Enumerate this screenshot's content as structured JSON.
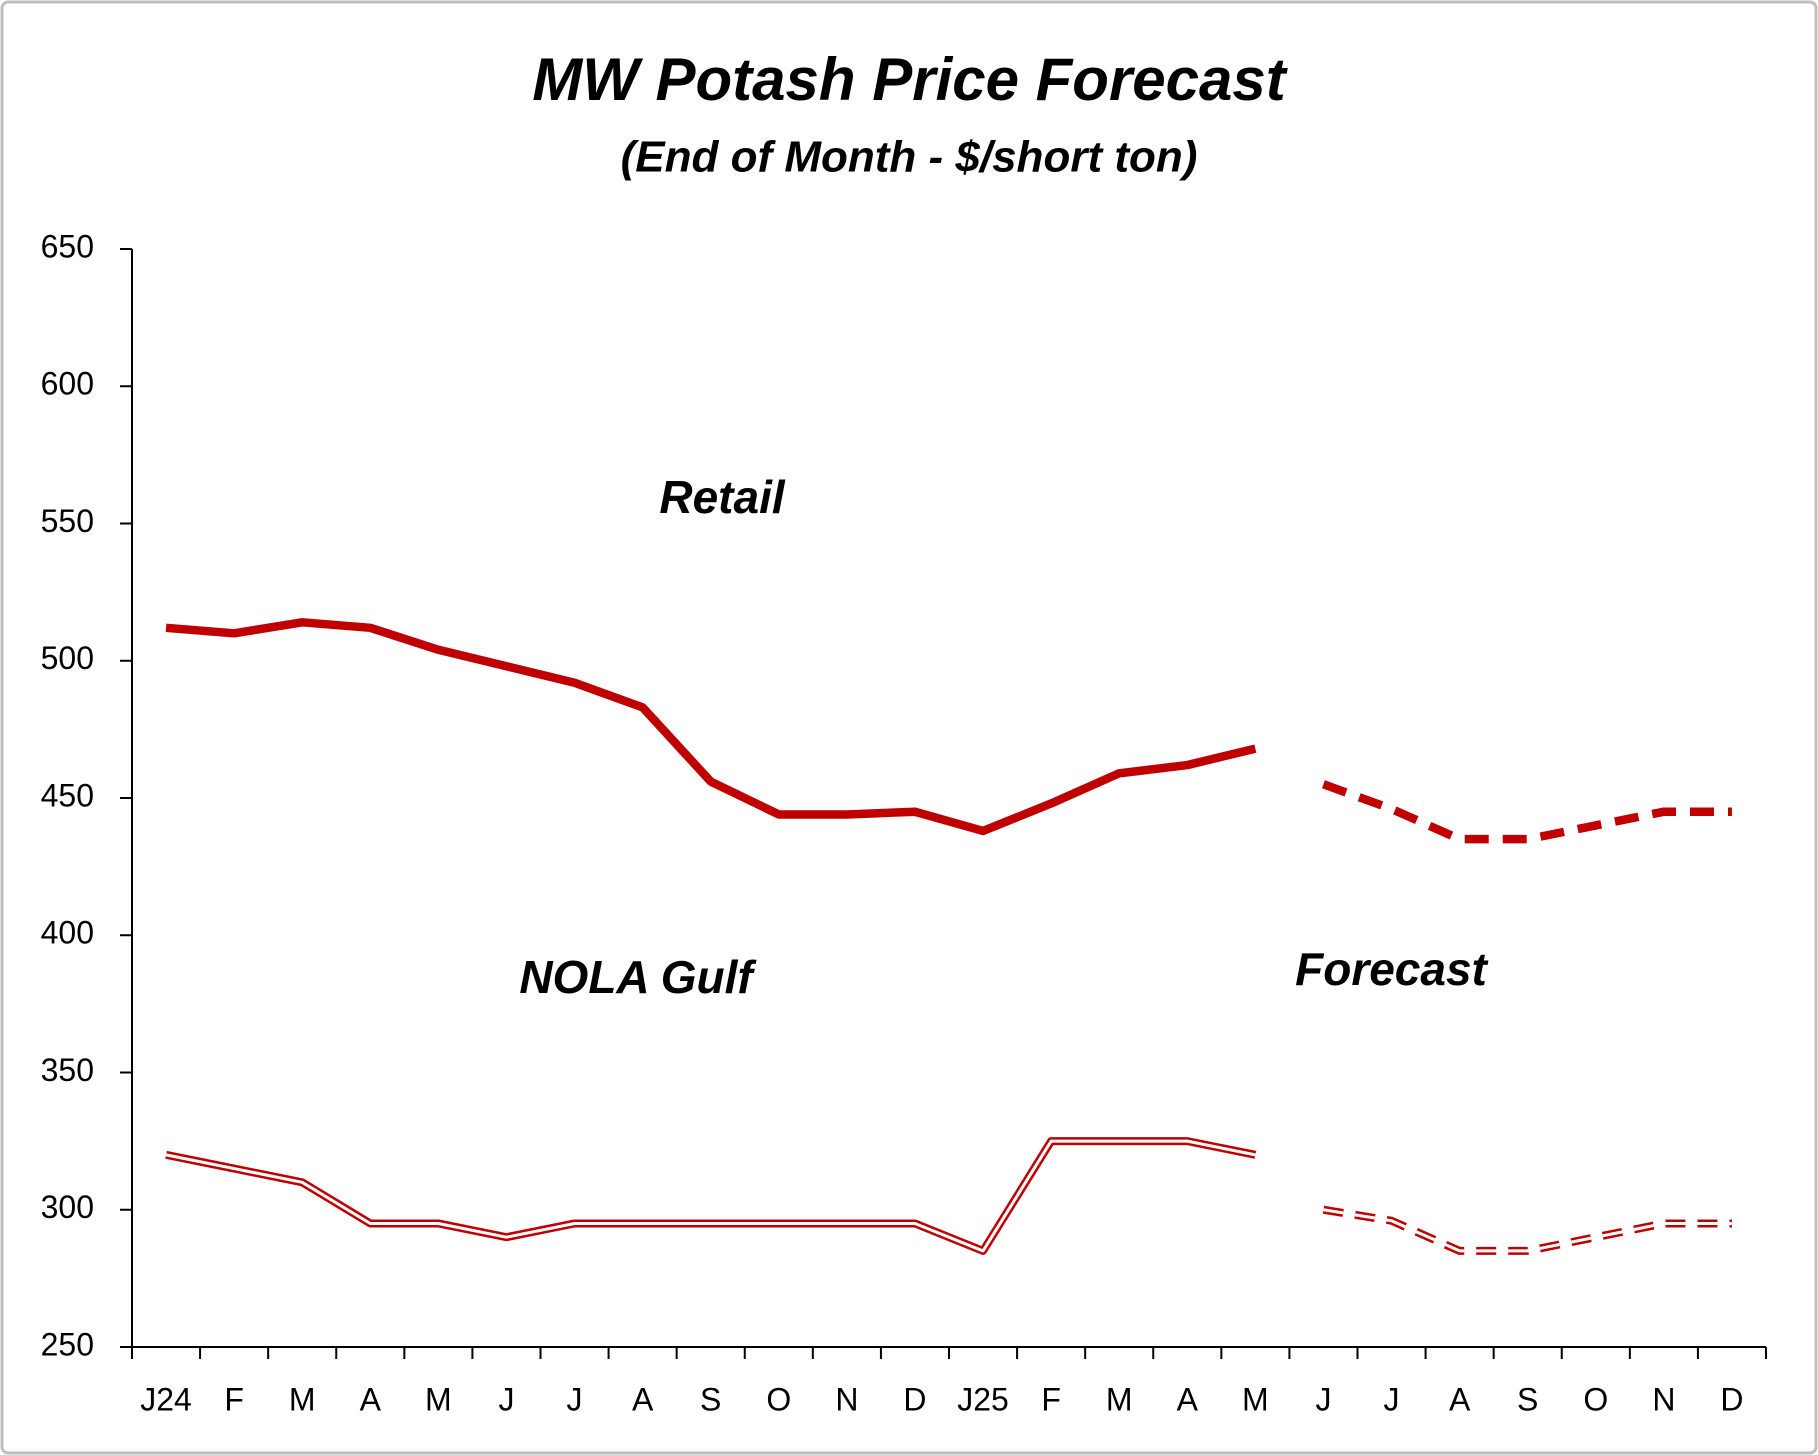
{
  "chart_data": {
    "type": "line",
    "title": "MW Potash Price Forecast",
    "subtitle": "(End of Month - $/short ton)",
    "categories": [
      "J24",
      "F",
      "M",
      "A",
      "M",
      "J",
      "J",
      "A",
      "S",
      "O",
      "N",
      "D",
      "J25",
      "F",
      "M",
      "A",
      "M",
      "J",
      "J",
      "A",
      "S",
      "O",
      "N",
      "D"
    ],
    "series": [
      {
        "color": "#c00000",
        "line_style": "solid",
        "double": false,
        "values": [
          512,
          510,
          514,
          512,
          504,
          498,
          492,
          483,
          456,
          444,
          444,
          445,
          438,
          448,
          459,
          462,
          468,
          null,
          null,
          null,
          null,
          null,
          null,
          null
        ]
      },
      {
        "color": "#c00000",
        "line_style": "dashed",
        "double": false,
        "values": [
          null,
          null,
          null,
          null,
          null,
          null,
          null,
          null,
          null,
          null,
          null,
          null,
          null,
          null,
          null,
          null,
          null,
          455,
          446,
          435,
          435,
          440,
          445,
          445
        ]
      },
      {
        "color": "#c00000",
        "line_style": "solid",
        "double": true,
        "values": [
          320,
          315,
          310,
          295,
          295,
          290,
          295,
          295,
          295,
          295,
          295,
          295,
          285,
          325,
          325,
          325,
          320,
          null,
          null,
          null,
          null,
          null,
          null,
          null
        ]
      },
      {
        "color": "#c00000",
        "line_style": "dashed",
        "double": true,
        "values": [
          null,
          null,
          null,
          null,
          null,
          null,
          null,
          null,
          null,
          null,
          null,
          null,
          null,
          null,
          null,
          null,
          null,
          300,
          296,
          285,
          285,
          290,
          295,
          295
        ]
      }
    ],
    "annotations": [
      "Retail",
      "NOLA Gulf",
      "Forecast"
    ],
    "ylim": [
      250,
      650
    ],
    "yticks": [
      250,
      300,
      350,
      400,
      450,
      500,
      550,
      600,
      650
    ],
    "grid": false
  }
}
